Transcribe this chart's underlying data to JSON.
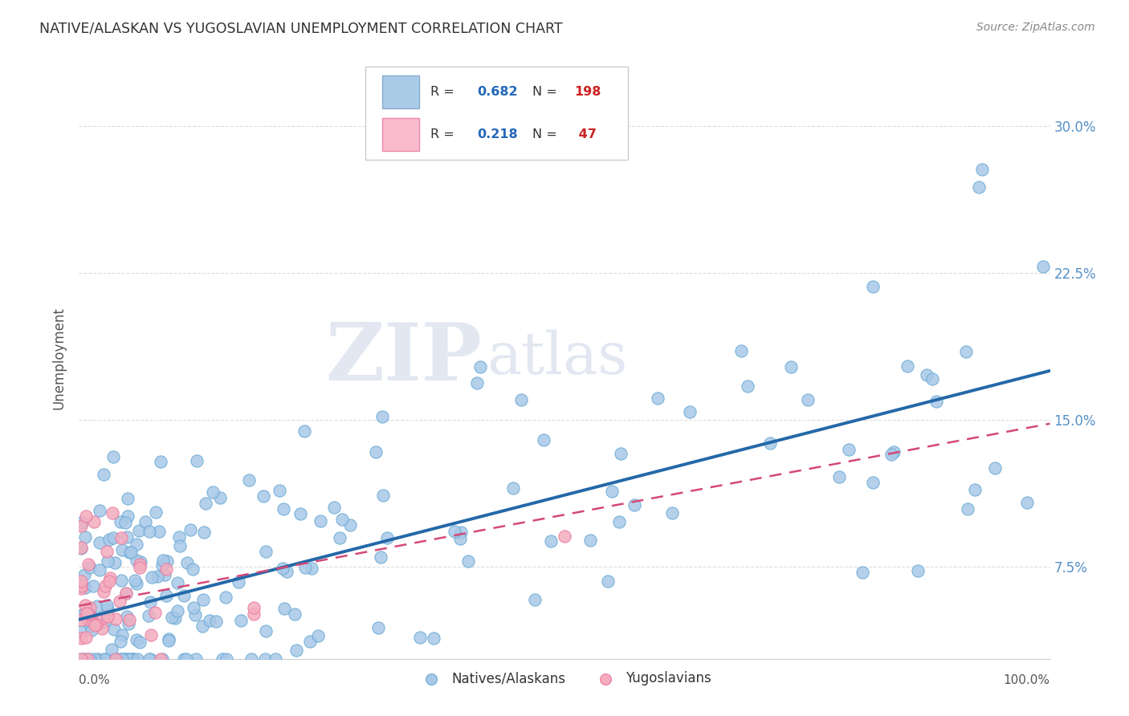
{
  "title": "NATIVE/ALASKAN VS YUGOSLAVIAN UNEMPLOYMENT CORRELATION CHART",
  "source": "Source: ZipAtlas.com",
  "ylabel": "Unemployment",
  "ytick_labels": [
    "7.5%",
    "15.0%",
    "22.5%",
    "30.0%"
  ],
  "ytick_values": [
    0.075,
    0.15,
    0.225,
    0.3
  ],
  "watermark_zip": "ZIP",
  "watermark_atlas": "atlas",
  "legend_blue_r": "0.682",
  "legend_blue_n": "198",
  "legend_pink_r": "0.218",
  "legend_pink_n": "47",
  "blue_scatter_color": "#A8C8E8",
  "blue_scatter_edge": "#6AAAD4",
  "pink_scatter_color": "#F4ACBE",
  "pink_scatter_edge": "#E87AA0",
  "blue_line_color": "#2468A8",
  "pink_line_color": "#D44878",
  "ytick_color": "#5590C8",
  "title_color": "#333333",
  "source_color": "#888888",
  "xlim": [
    0.0,
    1.0
  ],
  "ylim_min": 0.028,
  "ylim_max": 0.335,
  "blue_line_x0": 0.0,
  "blue_line_y0": 0.048,
  "blue_line_x1": 1.0,
  "blue_line_y1": 0.175,
  "pink_line_x0": 0.0,
  "pink_line_y0": 0.055,
  "pink_line_x1": 1.0,
  "pink_line_y1": 0.148
}
